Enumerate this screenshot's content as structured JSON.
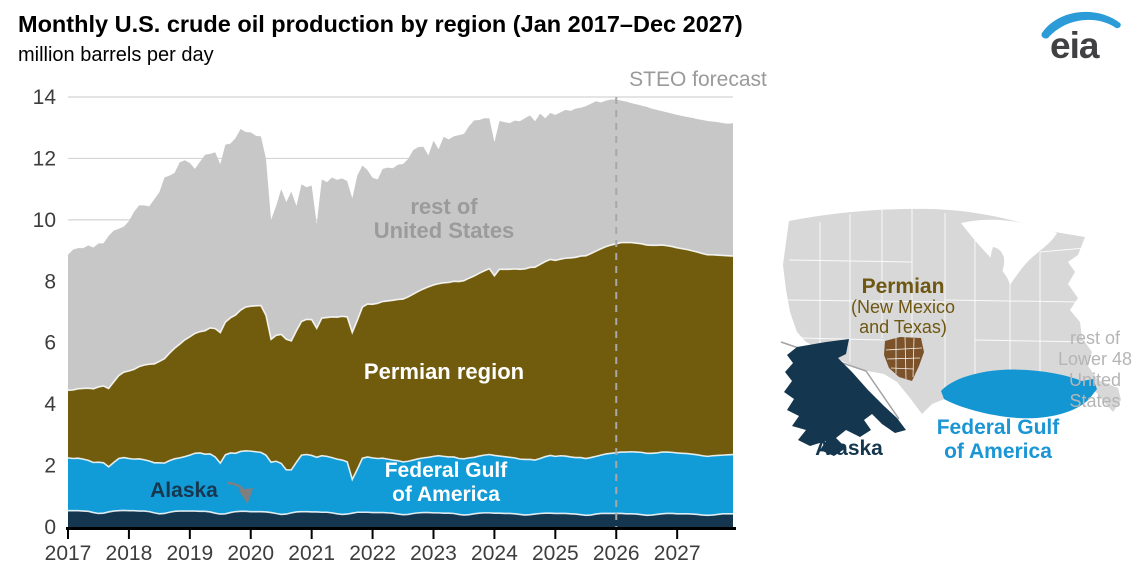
{
  "header": {
    "title": "Monthly U.S. crude oil production by region (Jan 2017–Dec 2027)",
    "subtitle": "million barrels per day"
  },
  "logo": {
    "text": "eia",
    "swoosh_color": "#2b9cd8",
    "text_color": "#414042"
  },
  "chart_annotations": {
    "forecast": "STEO forecast",
    "rest_line1": "rest of",
    "rest_line2": "United States",
    "permian": "Permian region",
    "gulf_line1": "Federal Gulf",
    "gulf_line2": "of America",
    "alaska": "Alaska"
  },
  "chart_data": {
    "type": "area",
    "stacked": true,
    "title": "Monthly U.S. crude oil production by region (Jan 2017–Dec 2027)",
    "ylabel": "million barrels per day",
    "x_unit": "month",
    "x_start": "2017-01",
    "x_end": "2027-12",
    "x_tick_labels": [
      "2017",
      "2018",
      "2019",
      "2020",
      "2021",
      "2022",
      "2023",
      "2024",
      "2025",
      "2026",
      "2027"
    ],
    "y_ticks": [
      0,
      2,
      4,
      6,
      8,
      10,
      12,
      14
    ],
    "ylim": [
      0,
      14
    ],
    "grid": "horizontal",
    "legend_position": "in-chart-labels",
    "forecast_divider_index": 108,
    "forecast_label": "STEO forecast",
    "series": [
      {
        "name": "Alaska",
        "color": "#14364f",
        "values": [
          0.53,
          0.53,
          0.53,
          0.52,
          0.51,
          0.47,
          0.44,
          0.45,
          0.49,
          0.52,
          0.53,
          0.54,
          0.53,
          0.53,
          0.52,
          0.52,
          0.5,
          0.46,
          0.43,
          0.44,
          0.48,
          0.51,
          0.52,
          0.52,
          0.52,
          0.52,
          0.51,
          0.51,
          0.49,
          0.45,
          0.42,
          0.43,
          0.47,
          0.5,
          0.51,
          0.51,
          0.5,
          0.5,
          0.5,
          0.49,
          0.47,
          0.44,
          0.41,
          0.42,
          0.46,
          0.49,
          0.5,
          0.5,
          0.49,
          0.49,
          0.48,
          0.48,
          0.46,
          0.43,
          0.41,
          0.42,
          0.45,
          0.48,
          0.48,
          0.48,
          0.47,
          0.47,
          0.47,
          0.46,
          0.45,
          0.42,
          0.4,
          0.41,
          0.44,
          0.46,
          0.47,
          0.47,
          0.46,
          0.46,
          0.45,
          0.45,
          0.44,
          0.41,
          0.39,
          0.4,
          0.43,
          0.45,
          0.46,
          0.46,
          0.45,
          0.45,
          0.44,
          0.44,
          0.43,
          0.41,
          0.39,
          0.4,
          0.42,
          0.44,
          0.45,
          0.45,
          0.44,
          0.44,
          0.44,
          0.43,
          0.42,
          0.4,
          0.38,
          0.39,
          0.42,
          0.44,
          0.44,
          0.44,
          0.44,
          0.44,
          0.43,
          0.43,
          0.42,
          0.4,
          0.38,
          0.39,
          0.41,
          0.43,
          0.44,
          0.44,
          0.43,
          0.43,
          0.43,
          0.42,
          0.41,
          0.39,
          0.38,
          0.39,
          0.41,
          0.43,
          0.43,
          0.43
        ]
      },
      {
        "name": "Federal Gulf of America",
        "color": "#119bd7",
        "values": [
          1.72,
          1.7,
          1.71,
          1.69,
          1.66,
          1.63,
          1.67,
          1.64,
          1.47,
          1.58,
          1.7,
          1.72,
          1.7,
          1.68,
          1.7,
          1.67,
          1.65,
          1.63,
          1.66,
          1.64,
          1.68,
          1.71,
          1.73,
          1.77,
          1.82,
          1.88,
          1.9,
          1.86,
          1.89,
          1.83,
          1.66,
          1.92,
          1.94,
          1.9,
          1.95,
          1.97,
          1.97,
          1.95,
          1.93,
          1.85,
          1.64,
          1.7,
          1.66,
          1.44,
          1.4,
          1.62,
          1.84,
          1.86,
          1.84,
          1.78,
          1.84,
          1.82,
          1.8,
          1.78,
          1.77,
          1.7,
          1.1,
          1.4,
          1.76,
          1.8,
          1.78,
          1.76,
          1.77,
          1.75,
          1.73,
          1.74,
          1.72,
          1.73,
          1.74,
          1.76,
          1.78,
          1.8,
          1.84,
          1.86,
          1.85,
          1.83,
          1.84,
          1.82,
          1.83,
          1.85,
          1.84,
          1.86,
          1.88,
          1.9,
          1.88,
          1.86,
          1.85,
          1.83,
          1.82,
          1.8,
          1.81,
          1.8,
          1.76,
          1.79,
          1.84,
          1.88,
          1.86,
          1.88,
          1.87,
          1.85,
          1.84,
          1.86,
          1.85,
          1.87,
          1.88,
          1.9,
          1.94,
          1.96,
          1.98,
          2.0,
          2.01,
          2.02,
          2.02,
          2.03,
          2.02,
          2.01,
          2.0,
          2.01,
          2.0,
          1.99,
          1.98,
          1.97,
          1.96,
          1.95,
          1.94,
          1.93,
          1.92,
          1.93,
          1.92,
          1.91,
          1.92,
          1.93
        ]
      },
      {
        "name": "Permian region",
        "color": "#715c0e",
        "values": [
          2.2,
          2.23,
          2.26,
          2.3,
          2.35,
          2.4,
          2.45,
          2.5,
          2.55,
          2.62,
          2.7,
          2.78,
          2.85,
          2.92,
          3.0,
          3.08,
          3.15,
          3.22,
          3.3,
          3.4,
          3.5,
          3.6,
          3.7,
          3.8,
          3.85,
          3.9,
          3.95,
          4.02,
          4.1,
          4.18,
          4.25,
          4.32,
          4.4,
          4.5,
          4.6,
          4.68,
          4.72,
          4.75,
          4.78,
          4.55,
          4.0,
          4.1,
          4.2,
          4.25,
          4.2,
          4.28,
          4.35,
          4.4,
          4.42,
          4.2,
          4.48,
          4.52,
          4.58,
          4.62,
          4.68,
          4.72,
          4.78,
          4.85,
          4.92,
          4.98,
          5.0,
          5.05,
          5.1,
          5.15,
          5.2,
          5.25,
          5.3,
          5.35,
          5.4,
          5.45,
          5.5,
          5.55,
          5.58,
          5.6,
          5.65,
          5.68,
          5.72,
          5.76,
          5.8,
          5.85,
          5.9,
          5.95,
          6.0,
          6.05,
          5.85,
          6.08,
          6.1,
          6.12,
          6.15,
          6.18,
          6.2,
          6.25,
          6.28,
          6.32,
          6.35,
          6.38,
          6.38,
          6.4,
          6.44,
          6.48,
          6.52,
          6.56,
          6.6,
          6.64,
          6.68,
          6.72,
          6.75,
          6.78,
          6.8,
          6.82,
          6.82,
          6.81,
          6.8,
          6.79,
          6.78,
          6.77,
          6.76,
          6.74,
          6.72,
          6.7,
          6.68,
          6.66,
          6.64,
          6.62,
          6.6,
          6.58,
          6.56,
          6.54,
          6.52,
          6.5,
          6.48,
          6.46
        ]
      },
      {
        "name": "rest of United States",
        "color": "#c7c7c7",
        "values": [
          4.42,
          4.57,
          4.58,
          4.57,
          4.65,
          4.6,
          4.67,
          4.65,
          4.97,
          4.93,
          4.78,
          4.74,
          4.88,
          5.13,
          5.25,
          5.2,
          5.14,
          5.36,
          5.51,
          5.9,
          5.78,
          5.71,
          5.92,
          5.85,
          5.66,
          5.36,
          5.53,
          5.73,
          5.67,
          5.74,
          5.48,
          5.78,
          5.67,
          5.76,
          5.9,
          5.7,
          5.66,
          5.54,
          5.51,
          5.1,
          3.89,
          4.21,
          4.73,
          4.47,
          4.86,
          4.06,
          4.47,
          4.3,
          4.37,
          3.39,
          4.52,
          4.41,
          4.54,
          4.47,
          4.49,
          4.42,
          4.37,
          4.72,
          4.61,
          4.36,
          4.12,
          4.04,
          4.32,
          4.34,
          4.3,
          4.39,
          4.4,
          4.49,
          4.69,
          4.7,
          4.63,
          4.28,
          4.7,
          4.38,
          4.75,
          4.66,
          4.72,
          4.77,
          4.78,
          4.95,
          5.07,
          4.99,
          4.97,
          4.9,
          4.35,
          4.83,
          4.79,
          4.76,
          4.83,
          4.82,
          4.91,
          4.95,
          4.75,
          4.91,
          4.67,
          4.77,
          4.74,
          4.78,
          4.83,
          4.79,
          4.84,
          4.83,
          4.87,
          4.88,
          4.88,
          4.76,
          4.75,
          4.74,
          4.7,
          4.62,
          4.59,
          4.54,
          4.52,
          4.5,
          4.5,
          4.45,
          4.41,
          4.36,
          4.34,
          4.33,
          4.33,
          4.32,
          4.32,
          4.33,
          4.33,
          4.35,
          4.36,
          4.34,
          4.33,
          4.31,
          4.3,
          4.33
        ]
      }
    ]
  },
  "map": {
    "labels": {
      "permian_title": "Permian",
      "permian_sub1": "(New Mexico",
      "permian_sub2": "and Texas)",
      "alaska": "Alaska",
      "gulf_line1": "Federal Gulf",
      "gulf_line2": "of America",
      "rest1": "rest of",
      "rest2": "Lower 48",
      "rest3": "United",
      "rest4": "States"
    },
    "colors": {
      "land": "#d8d8d8",
      "state_border": "#ffffff",
      "permian": "#7b5229",
      "gulf": "#1496d3",
      "alaska": "#14364f",
      "label_brown": "#6e5712",
      "label_gray": "#b5b5b5",
      "label_blue": "#1b96d4",
      "label_navy": "#14364f"
    }
  }
}
